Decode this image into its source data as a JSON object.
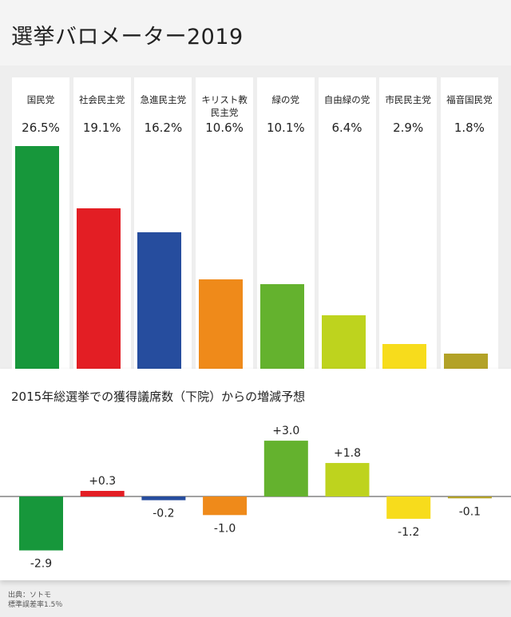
{
  "title": "選挙バロメーター2019",
  "subtitle": "2015年総選挙での獲得議席数（下院）からの増減予想",
  "source": {
    "line1": "出典：ソトモ",
    "line2": "標準誤差率1.5％"
  },
  "chart_data": [
    {
      "type": "bar",
      "categories": [
        "国民党",
        "社会民主党",
        "急進民主党",
        "キリスト教民主党",
        "緑の党",
        "自由緑の党",
        "市民民主党",
        "福音国民党"
      ],
      "values": [
        26.5,
        19.1,
        16.2,
        10.6,
        10.1,
        6.4,
        2.9,
        1.8
      ],
      "value_labels": [
        "26.5%",
        "19.1%",
        "16.2%",
        "10.6%",
        "10.1%",
        "6.4%",
        "2.9%",
        "1.8%"
      ],
      "colors": [
        "#17973b",
        "#e31e24",
        "#264d9e",
        "#ef8a1a",
        "#64b22e",
        "#bed31e",
        "#f7dc1c",
        "#b3a227"
      ],
      "name_lines": [
        [
          "国民党"
        ],
        [
          "社会民主党"
        ],
        [
          "急進民主党"
        ],
        [
          "キリスト教",
          "民主党"
        ],
        [
          "緑の党"
        ],
        [
          "自由緑の党"
        ],
        [
          "市民民主党"
        ],
        [
          "福音国民党"
        ]
      ],
      "ylim": [
        0,
        26.5
      ]
    },
    {
      "type": "bar",
      "title": "2015年総選挙での獲得議席数（下院）からの増減予想",
      "categories": [
        "国民党",
        "社会民主党",
        "急進民主党",
        "キリスト教民主党",
        "緑の党",
        "自由緑の党",
        "市民民主党",
        "福音国民党"
      ],
      "values": [
        -2.9,
        0.3,
        -0.2,
        -1.0,
        3.0,
        1.8,
        -1.2,
        -0.1
      ],
      "value_labels": [
        "-2.9",
        "+0.3",
        "-0.2",
        "-1.0",
        "+3.0",
        "+1.8",
        "-1.2",
        "-0.1"
      ],
      "colors": [
        "#17973b",
        "#e31e24",
        "#264d9e",
        "#ef8a1a",
        "#64b22e",
        "#bed31e",
        "#f7dc1c",
        "#b3a227"
      ]
    }
  ]
}
